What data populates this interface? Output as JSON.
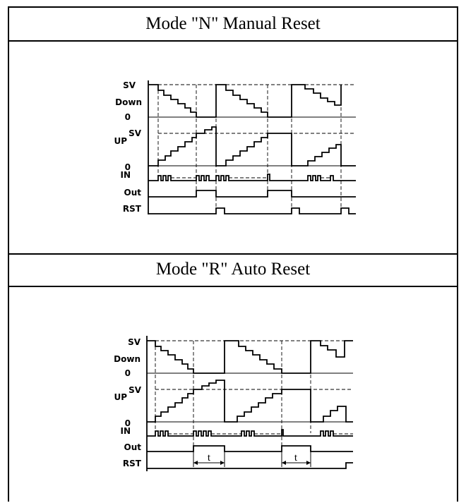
{
  "sections": [
    {
      "title": "Mode \"N\" Manual Reset",
      "labels": {
        "sv_top": "SV",
        "down": "Down",
        "zero_top": "0",
        "up": "UP",
        "sv_up": "SV",
        "zero_up": "0",
        "in": "IN",
        "out": "Out",
        "rst": "RST"
      }
    },
    {
      "title": "Mode \"R\" Auto Reset",
      "labels": {
        "sv_top": "SV",
        "down": "Down",
        "zero_top": "0",
        "up": "UP",
        "sv_up": "SV",
        "zero_up": "0",
        "in": "IN",
        "out": "Out",
        "rst": "RST",
        "t1": "t",
        "t2": "t"
      }
    }
  ]
}
